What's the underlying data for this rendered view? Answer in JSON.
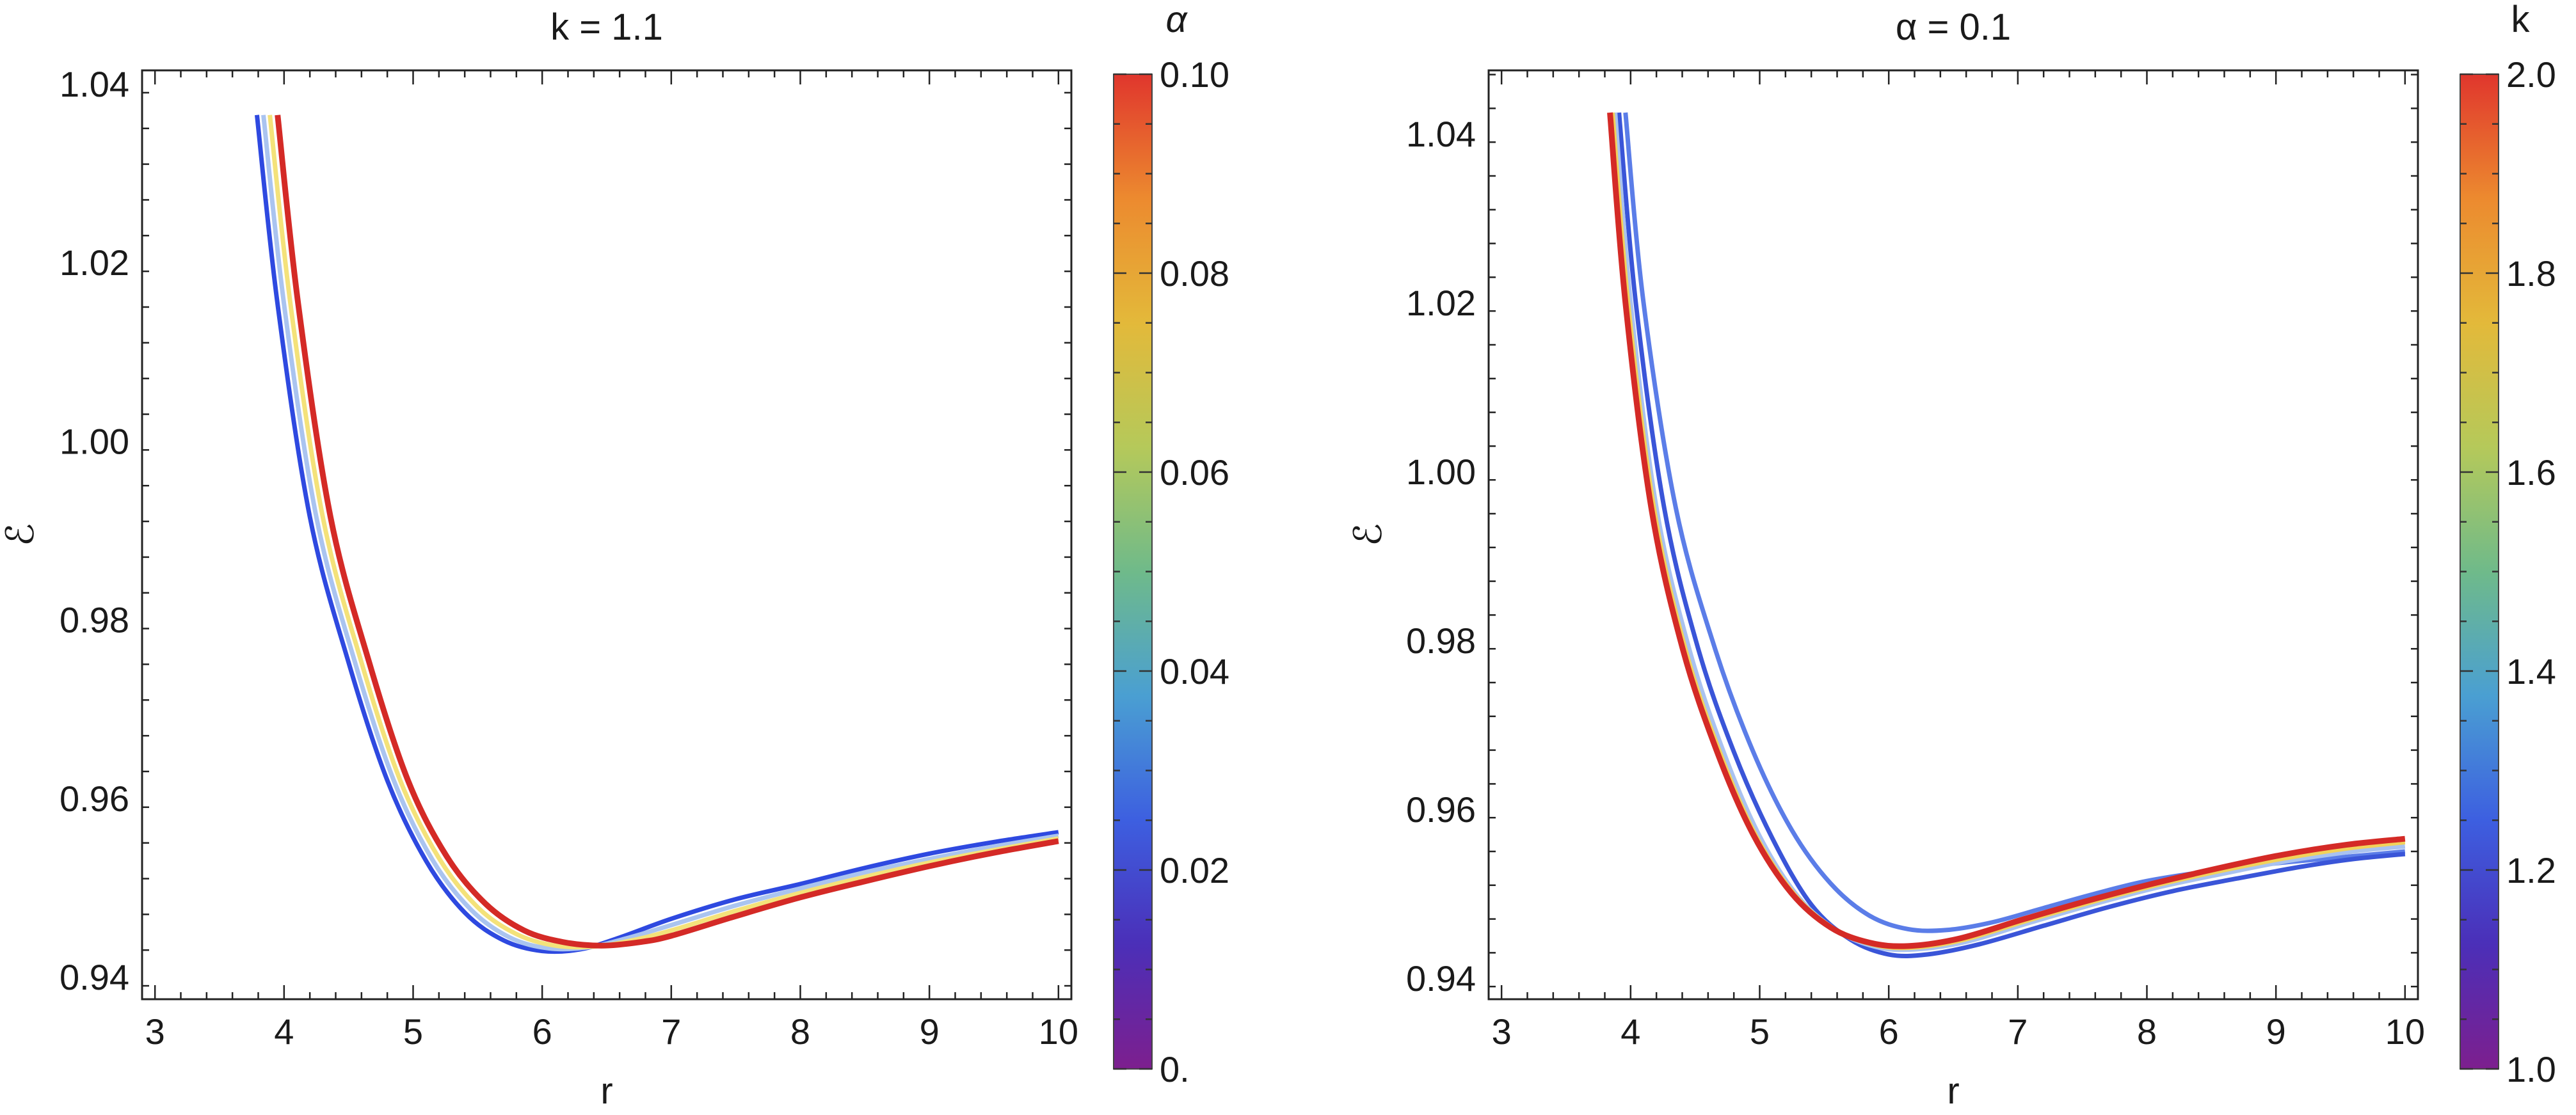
{
  "chart_data": [
    {
      "type": "line",
      "title": "k = 1.1",
      "xlabel": "r",
      "ylabel": "ℰ",
      "xlim": [
        2.9,
        10.1
      ],
      "ylim": [
        0.9375,
        1.0415
      ],
      "x_ticks": [
        "3",
        "4",
        "5",
        "6",
        "7",
        "8",
        "9",
        "10"
      ],
      "y_ticks": [
        "0.94",
        "0.96",
        "0.98",
        "1.00",
        "1.02",
        "1.04"
      ],
      "grid": false,
      "colorbar": {
        "label": "α",
        "min": 0.0,
        "max": 0.1,
        "tick_labels": [
          "0.",
          "0.02",
          "0.04",
          "0.06",
          "0.08",
          "0.10"
        ],
        "colors": [
          "#7d1f8e",
          "#4b2fb8",
          "#3d5fe0",
          "#4a9fd2",
          "#6fba8a",
          "#b5c95a",
          "#e3b93a",
          "#ec8a2f",
          "#e0362d"
        ]
      },
      "series": [
        {
          "param": 0.0,
          "color": "#2e49e0",
          "points": [
            [
              3.79,
              1.0365
            ],
            [
              3.95,
              1.0153
            ],
            [
              4.2,
              0.9915
            ],
            [
              4.5,
              0.9752
            ],
            [
              4.8,
              0.962
            ],
            [
              5.1,
              0.953
            ],
            [
              5.4,
              0.9472
            ],
            [
              5.7,
              0.9441
            ],
            [
              6.0,
              0.9429
            ],
            [
              6.3,
              0.9431
            ],
            [
              6.6,
              0.9444
            ],
            [
              7.0,
              0.9465
            ],
            [
              7.5,
              0.9487
            ],
            [
              8.0,
              0.9504
            ],
            [
              8.5,
              0.9522
            ],
            [
              9.0,
              0.9538
            ],
            [
              9.5,
              0.9551
            ],
            [
              10.0,
              0.9562
            ]
          ]
        },
        {
          "param": 0.033,
          "color": "#aac4f0",
          "points": [
            [
              3.84,
              1.0365
            ],
            [
              4.0,
              1.0153
            ],
            [
              4.25,
              0.9915
            ],
            [
              4.55,
              0.9752
            ],
            [
              4.85,
              0.962
            ],
            [
              5.15,
              0.9531
            ],
            [
              5.45,
              0.9475
            ],
            [
              5.75,
              0.9444
            ],
            [
              6.05,
              0.9432
            ],
            [
              6.35,
              0.9433
            ],
            [
              6.65,
              0.9443
            ],
            [
              7.0,
              0.9458
            ],
            [
              7.5,
              0.948
            ],
            [
              8.0,
              0.9499
            ],
            [
              8.5,
              0.9517
            ],
            [
              9.0,
              0.9532
            ],
            [
              9.5,
              0.9546
            ],
            [
              10.0,
              0.9558
            ]
          ]
        },
        {
          "param": 0.066,
          "color": "#f4e27a",
          "points": [
            [
              3.89,
              1.0365
            ],
            [
              4.05,
              1.0153
            ],
            [
              4.3,
              0.9915
            ],
            [
              4.6,
              0.9752
            ],
            [
              4.9,
              0.962
            ],
            [
              5.2,
              0.9533
            ],
            [
              5.5,
              0.9478
            ],
            [
              5.8,
              0.9448
            ],
            [
              6.1,
              0.9435
            ],
            [
              6.4,
              0.9434
            ],
            [
              6.7,
              0.9441
            ],
            [
              7.0,
              0.9452
            ],
            [
              7.5,
              0.9474
            ],
            [
              8.0,
              0.9494
            ],
            [
              8.5,
              0.9512
            ],
            [
              9.0,
              0.9528
            ],
            [
              9.5,
              0.9542
            ],
            [
              10.0,
              0.9555
            ]
          ]
        },
        {
          "param": 0.1,
          "color": "#d42a26",
          "points": [
            [
              3.95,
              1.0365
            ],
            [
              4.11,
              1.0153
            ],
            [
              4.36,
              0.9915
            ],
            [
              4.66,
              0.9752
            ],
            [
              4.96,
              0.962
            ],
            [
              5.26,
              0.9535
            ],
            [
              5.56,
              0.9482
            ],
            [
              5.86,
              0.9452
            ],
            [
              6.16,
              0.9439
            ],
            [
              6.46,
              0.9435
            ],
            [
              6.76,
              0.9439
            ],
            [
              7.0,
              0.9446
            ],
            [
              7.5,
              0.9468
            ],
            [
              8.0,
              0.9489
            ],
            [
              8.5,
              0.9507
            ],
            [
              9.0,
              0.9524
            ],
            [
              9.5,
              0.9539
            ],
            [
              10.0,
              0.9552
            ]
          ]
        }
      ]
    },
    {
      "type": "line",
      "title": "α = 0.1",
      "xlabel": "r",
      "ylabel": "ℰ",
      "xlim": [
        2.9,
        10.1
      ],
      "ylim": [
        0.9375,
        1.0475
      ],
      "x_ticks": [
        "3",
        "4",
        "5",
        "6",
        "7",
        "8",
        "9",
        "10"
      ],
      "y_ticks": [
        "0.94",
        "0.96",
        "0.98",
        "1.00",
        "1.02",
        "1.04"
      ],
      "grid": false,
      "colorbar": {
        "label": "k",
        "min": 1.0,
        "max": 2.0,
        "tick_labels": [
          "1.0",
          "1.2",
          "1.4",
          "1.6",
          "1.8",
          "2.0"
        ],
        "colors": [
          "#7d1f8e",
          "#4b2fb8",
          "#3d5fe0",
          "#4a9fd2",
          "#6fba8a",
          "#b5c95a",
          "#e3b93a",
          "#ec8a2f",
          "#e0362d"
        ]
      },
      "series": [
        {
          "param": 1.0,
          "color": "#5b7de8",
          "points": [
            [
              3.96,
              1.0425
            ],
            [
              4.1,
              1.02
            ],
            [
              4.35,
              0.9957
            ],
            [
              4.65,
              0.9792
            ],
            [
              4.95,
              0.9668
            ],
            [
              5.25,
              0.9575
            ],
            [
              5.55,
              0.9512
            ],
            [
              5.85,
              0.9474
            ],
            [
              6.15,
              0.9458
            ],
            [
              6.45,
              0.9457
            ],
            [
              6.8,
              0.9466
            ],
            [
              7.2,
              0.9483
            ],
            [
              7.6,
              0.95
            ],
            [
              8.0,
              0.9515
            ],
            [
              8.5,
              0.9527
            ],
            [
              9.0,
              0.9536
            ],
            [
              9.5,
              0.9543
            ],
            [
              10.0,
              0.955
            ]
          ]
        },
        {
          "param": 1.25,
          "color": "#3a55d8",
          "points": [
            [
              3.91,
              1.0425
            ],
            [
              4.04,
              1.02
            ],
            [
              4.26,
              0.9957
            ],
            [
              4.52,
              0.9792
            ],
            [
              4.8,
              0.9668
            ],
            [
              5.1,
              0.9565
            ],
            [
              5.4,
              0.9487
            ],
            [
              5.7,
              0.9446
            ],
            [
              6.0,
              0.9428
            ],
            [
              6.3,
              0.9428
            ],
            [
              6.7,
              0.944
            ],
            [
              7.2,
              0.9462
            ],
            [
              7.7,
              0.9484
            ],
            [
              8.2,
              0.9503
            ],
            [
              8.7,
              0.9518
            ],
            [
              9.2,
              0.9532
            ],
            [
              9.6,
              0.9541
            ],
            [
              10.0,
              0.9547
            ]
          ]
        },
        {
          "param": 1.5,
          "color": "#a9c2f0",
          "points": [
            [
              3.88,
              1.0425
            ],
            [
              4.0,
              1.02
            ],
            [
              4.2,
              0.9957
            ],
            [
              4.45,
              0.9792
            ],
            [
              4.72,
              0.9668
            ],
            [
              5.0,
              0.9568
            ],
            [
              5.3,
              0.9496
            ],
            [
              5.6,
              0.9456
            ],
            [
              5.9,
              0.9437
            ],
            [
              6.2,
              0.9434
            ],
            [
              6.6,
              0.9443
            ],
            [
              7.1,
              0.9466
            ],
            [
              7.6,
              0.9488
            ],
            [
              8.1,
              0.9508
            ],
            [
              8.6,
              0.9524
            ],
            [
              9.1,
              0.9539
            ],
            [
              9.6,
              0.955
            ],
            [
              10.0,
              0.9556
            ]
          ]
        },
        {
          "param": 1.75,
          "color": "#f2d25a",
          "points": [
            [
              3.86,
              1.0425
            ],
            [
              3.98,
              1.02
            ],
            [
              4.18,
              0.9957
            ],
            [
              4.42,
              0.9792
            ],
            [
              4.69,
              0.9668
            ],
            [
              4.97,
              0.9569
            ],
            [
              5.27,
              0.9499
            ],
            [
              5.57,
              0.9459
            ],
            [
              5.87,
              0.944
            ],
            [
              6.17,
              0.9436
            ],
            [
              6.57,
              0.9445
            ],
            [
              7.07,
              0.9468
            ],
            [
              7.57,
              0.949
            ],
            [
              8.07,
              0.951
            ],
            [
              8.57,
              0.9527
            ],
            [
              9.07,
              0.9542
            ],
            [
              9.57,
              0.9554
            ],
            [
              10.0,
              0.9561
            ]
          ]
        },
        {
          "param": 2.0,
          "color": "#d42a26",
          "points": [
            [
              3.84,
              1.0425
            ],
            [
              3.96,
              1.02
            ],
            [
              4.16,
              0.9957
            ],
            [
              4.4,
              0.9792
            ],
            [
              4.67,
              0.9668
            ],
            [
              4.95,
              0.957
            ],
            [
              5.25,
              0.95
            ],
            [
              5.55,
              0.946
            ],
            [
              5.85,
              0.9442
            ],
            [
              6.15,
              0.9438
            ],
            [
              6.55,
              0.9447
            ],
            [
              7.05,
              0.947
            ],
            [
              7.55,
              0.9492
            ],
            [
              8.05,
              0.9512
            ],
            [
              8.55,
              0.953
            ],
            [
              9.05,
              0.9546
            ],
            [
              9.55,
              0.9558
            ],
            [
              10.0,
              0.9565
            ]
          ]
        }
      ]
    }
  ]
}
